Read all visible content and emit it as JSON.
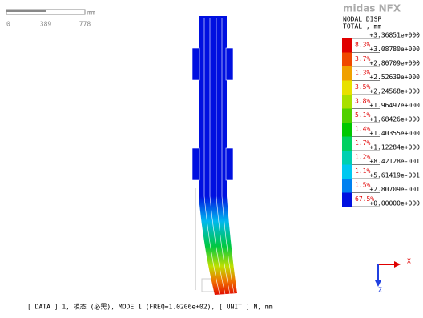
{
  "scale_bar": {
    "unit": "mm",
    "labels": [
      "0",
      "389",
      "778"
    ]
  },
  "logo": "midas NFX",
  "legend": {
    "title": "NODAL DISP",
    "subtitle": "TOTAL , mm",
    "levels": [
      "+3.36851e+000",
      "+3.08780e+000",
      "+2.80709e+000",
      "+2.52639e+000",
      "+2.24568e+000",
      "+1.96497e+000",
      "+1.68426e+000",
      "+1.40355e+000",
      "+1.12284e+000",
      "+8.42128e-001",
      "+5.61419e-001",
      "+2.80709e-001",
      "+0.00000e+000"
    ],
    "bands": [
      {
        "percent": "8.3%",
        "color": "#e00000"
      },
      {
        "percent": "3.7%",
        "color": "#f04800"
      },
      {
        "percent": "1.3%",
        "color": "#f0a000"
      },
      {
        "percent": "3.5%",
        "color": "#e8e000"
      },
      {
        "percent": "3.8%",
        "color": "#a8e000"
      },
      {
        "percent": "5.1%",
        "color": "#50d000"
      },
      {
        "percent": "1.4%",
        "color": "#00c800"
      },
      {
        "percent": "1.7%",
        "color": "#00d060"
      },
      {
        "percent": "1.2%",
        "color": "#00d0b0"
      },
      {
        "percent": "1.1%",
        "color": "#00c8f0"
      },
      {
        "percent": "1.5%",
        "color": "#0080f0"
      },
      {
        "percent": "67.5%",
        "color": "#0010e0"
      }
    ]
  },
  "axes": {
    "x": "X",
    "z": "Z"
  },
  "status_bar": "[ DATA ]  1,  模态 (必需),  MODE 1 (FREQ=1.0206e+02),    [ UNIT ]   N,  mm"
}
